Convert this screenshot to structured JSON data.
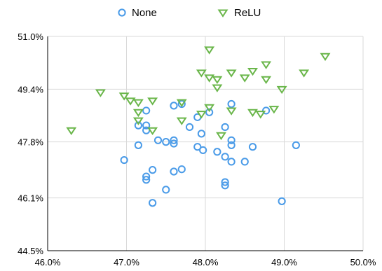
{
  "chart_data": {
    "type": "scatter",
    "title": "",
    "xlabel": "",
    "ylabel": "",
    "xlim": [
      46.0,
      50.0
    ],
    "ylim": [
      44.5,
      51.0
    ],
    "x_ticks": [
      46.0,
      47.0,
      48.0,
      49.0,
      50.0
    ],
    "x_tick_labels": [
      "46.0%",
      "47.0%",
      "48.0%",
      "49.0%",
      "50.0%"
    ],
    "y_ticks": [
      44.5,
      46.1,
      47.8,
      49.4,
      51.0
    ],
    "y_tick_labels": [
      "44.5%",
      "46.1%",
      "47.8%",
      "49.4%",
      "51.0%"
    ],
    "grid": true,
    "legend_position": "top-center",
    "series": [
      {
        "name": "None",
        "marker": "circle",
        "color": "#4a9be8",
        "points": [
          [
            47.25,
            48.75
          ],
          [
            47.15,
            48.3
          ],
          [
            47.25,
            48.3
          ],
          [
            47.25,
            48.15
          ],
          [
            47.15,
            47.7
          ],
          [
            47.4,
            47.85
          ],
          [
            47.5,
            47.8
          ],
          [
            47.6,
            47.85
          ],
          [
            47.6,
            47.75
          ],
          [
            46.97,
            47.25
          ],
          [
            47.25,
            46.75
          ],
          [
            47.25,
            46.65
          ],
          [
            47.33,
            46.95
          ],
          [
            47.6,
            46.9
          ],
          [
            47.7,
            46.97
          ],
          [
            47.5,
            46.35
          ],
          [
            47.33,
            45.95
          ],
          [
            47.6,
            48.9
          ],
          [
            47.7,
            48.95
          ],
          [
            47.8,
            48.25
          ],
          [
            47.9,
            48.55
          ],
          [
            47.95,
            48.05
          ],
          [
            48.05,
            48.7
          ],
          [
            47.9,
            47.65
          ],
          [
            47.97,
            47.55
          ],
          [
            48.15,
            47.5
          ],
          [
            48.25,
            48.25
          ],
          [
            48.25,
            47.35
          ],
          [
            48.33,
            47.85
          ],
          [
            48.33,
            47.7
          ],
          [
            48.33,
            47.2
          ],
          [
            48.33,
            48.95
          ],
          [
            48.25,
            46.58
          ],
          [
            48.25,
            46.48
          ],
          [
            48.5,
            47.2
          ],
          [
            48.6,
            47.65
          ],
          [
            48.77,
            48.75
          ],
          [
            49.15,
            47.7
          ],
          [
            48.97,
            46.0
          ]
        ]
      },
      {
        "name": "ReLU",
        "marker": "triangle-down",
        "color": "#6ab64a",
        "points": [
          [
            46.3,
            48.15
          ],
          [
            46.67,
            49.3
          ],
          [
            46.97,
            49.2
          ],
          [
            47.05,
            49.05
          ],
          [
            47.15,
            49.0
          ],
          [
            47.15,
            48.7
          ],
          [
            47.15,
            48.45
          ],
          [
            47.33,
            49.05
          ],
          [
            47.33,
            48.15
          ],
          [
            47.7,
            48.45
          ],
          [
            47.7,
            49.0
          ],
          [
            47.95,
            48.65
          ],
          [
            48.05,
            48.85
          ],
          [
            47.95,
            49.9
          ],
          [
            48.05,
            49.75
          ],
          [
            48.15,
            49.7
          ],
          [
            48.15,
            49.45
          ],
          [
            48.05,
            50.6
          ],
          [
            48.33,
            49.9
          ],
          [
            48.5,
            49.75
          ],
          [
            48.6,
            49.95
          ],
          [
            48.77,
            50.15
          ],
          [
            48.77,
            49.7
          ],
          [
            48.6,
            48.7
          ],
          [
            48.7,
            48.65
          ],
          [
            48.87,
            48.8
          ],
          [
            48.97,
            49.4
          ],
          [
            48.2,
            48.0
          ],
          [
            48.33,
            48.75
          ],
          [
            49.25,
            49.9
          ],
          [
            49.52,
            50.4
          ]
        ]
      }
    ]
  }
}
